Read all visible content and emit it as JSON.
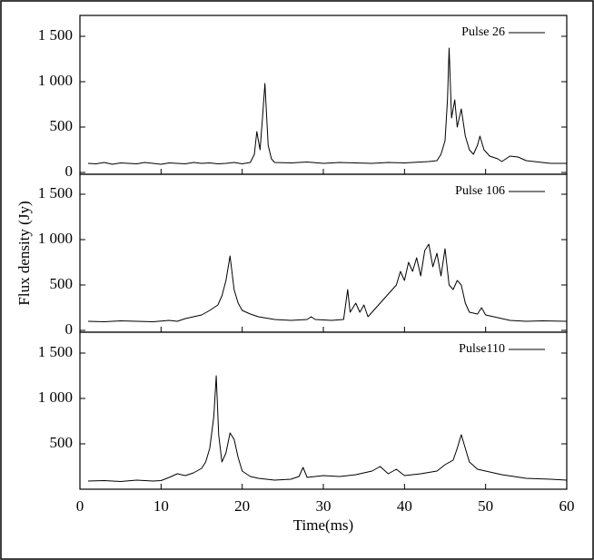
{
  "chart_data": [
    {
      "type": "line",
      "x": [
        1,
        2,
        3,
        4,
        5,
        6,
        7,
        8,
        9,
        10,
        11,
        12,
        13,
        14,
        15,
        16,
        17,
        18,
        19,
        20,
        21,
        21.5,
        21.8,
        22.2,
        22.5,
        22.8,
        23.2,
        23.6,
        24,
        26,
        28,
        30,
        32,
        34,
        36,
        38,
        40,
        42,
        43,
        44,
        44.5,
        45,
        45.3,
        45.5,
        45.8,
        46.2,
        46.5,
        47,
        47.5,
        48,
        48.5,
        49,
        49.3,
        49.8,
        50.5,
        51.5,
        52,
        53,
        54,
        55,
        56,
        58,
        60
      ],
      "series": [
        {
          "name": "Pulse 26",
          "color": "#000000",
          "values": [
            100,
            95,
            110,
            90,
            105,
            100,
            95,
            110,
            100,
            90,
            105,
            100,
            95,
            110,
            100,
            105,
            95,
            100,
            110,
            95,
            110,
            200,
            450,
            250,
            600,
            980,
            300,
            150,
            110,
            105,
            115,
            100,
            110,
            105,
            100,
            110,
            105,
            115,
            120,
            130,
            200,
            350,
            800,
            1370,
            600,
            800,
            500,
            700,
            400,
            250,
            200,
            300,
            400,
            250,
            180,
            150,
            120,
            180,
            170,
            130,
            120,
            100,
            100
          ]
        }
      ],
      "xlim": [
        0,
        60
      ],
      "xticks": [
        0,
        10,
        20,
        30,
        40,
        50,
        60
      ],
      "ylim": [
        -20,
        1730
      ],
      "yticks": [
        0,
        500,
        {
          "value": 1000,
          "label": "1 000"
        },
        {
          "value": 1500,
          "label": "1 500"
        }
      ]
    },
    {
      "type": "line",
      "ylabel": "Flux density (Jy)",
      "x": [
        1,
        3,
        5,
        7,
        9,
        11,
        12,
        13,
        15,
        16,
        17,
        17.5,
        18,
        18.5,
        18.8,
        19,
        19.5,
        20,
        21,
        22,
        24,
        26,
        28,
        28.5,
        29,
        31,
        32.5,
        33,
        33.3,
        34,
        34.5,
        35,
        35.5,
        36,
        37,
        38,
        39,
        39.5,
        40,
        40.5,
        41,
        41.5,
        42,
        42.5,
        43,
        43.5,
        44,
        44.5,
        45,
        45.5,
        46,
        46.5,
        47,
        47.5,
        48,
        49,
        49.5,
        50,
        51,
        53,
        55,
        57,
        60
      ],
      "series": [
        {
          "name": "Pulse 106",
          "color": "#000000",
          "values": [
            100,
            95,
            105,
            100,
            95,
            110,
            100,
            130,
            170,
            220,
            280,
            380,
            550,
            820,
            600,
            450,
            300,
            220,
            180,
            150,
            120,
            110,
            120,
            150,
            120,
            110,
            120,
            450,
            200,
            300,
            200,
            280,
            150,
            200,
            300,
            400,
            500,
            650,
            550,
            750,
            650,
            800,
            600,
            880,
            950,
            700,
            850,
            600,
            900,
            500,
            450,
            550,
            500,
            300,
            200,
            180,
            250,
            170,
            150,
            110,
            100,
            105,
            100
          ]
        }
      ],
      "xlim": [
        0,
        60
      ],
      "xticks": [
        0,
        10,
        20,
        30,
        40,
        50,
        60
      ],
      "ylim": [
        -20,
        1720
      ],
      "yticks": [
        0,
        500,
        {
          "value": 1000,
          "label": "1 000"
        },
        {
          "value": 1500,
          "label": "1 500"
        }
      ]
    },
    {
      "type": "line",
      "xlabel": "Time(ms)",
      "x": [
        1,
        3,
        5,
        7,
        9,
        10,
        11,
        12,
        13,
        14,
        15,
        15.5,
        16,
        16.5,
        16.8,
        17.1,
        17.5,
        18,
        18.5,
        19,
        19.5,
        20,
        21,
        22,
        24,
        26,
        27,
        27.5,
        28,
        30,
        32,
        34,
        36,
        37,
        38,
        39,
        40,
        42,
        44,
        45,
        46,
        46.5,
        47,
        47.5,
        48,
        49,
        50,
        52,
        55,
        58,
        60
      ],
      "series": [
        {
          "name": "Pulse110",
          "color": "#000000",
          "values": [
            90,
            95,
            85,
            100,
            90,
            95,
            130,
            170,
            150,
            180,
            230,
            300,
            450,
            800,
            1250,
            600,
            300,
            400,
            620,
            550,
            350,
            200,
            140,
            120,
            100,
            110,
            140,
            240,
            130,
            150,
            140,
            160,
            200,
            250,
            170,
            220,
            150,
            170,
            200,
            270,
            320,
            450,
            600,
            450,
            300,
            220,
            200,
            160,
            120,
            110,
            100
          ]
        }
      ],
      "xlim": [
        0,
        60
      ],
      "xticks": [
        0,
        10,
        20,
        30,
        40,
        50,
        60
      ],
      "ylim": [
        0,
        1730
      ],
      "yticks": [
        500,
        {
          "value": 1000,
          "label": "1 000"
        },
        {
          "value": 1500,
          "label": "1 500"
        }
      ]
    }
  ]
}
